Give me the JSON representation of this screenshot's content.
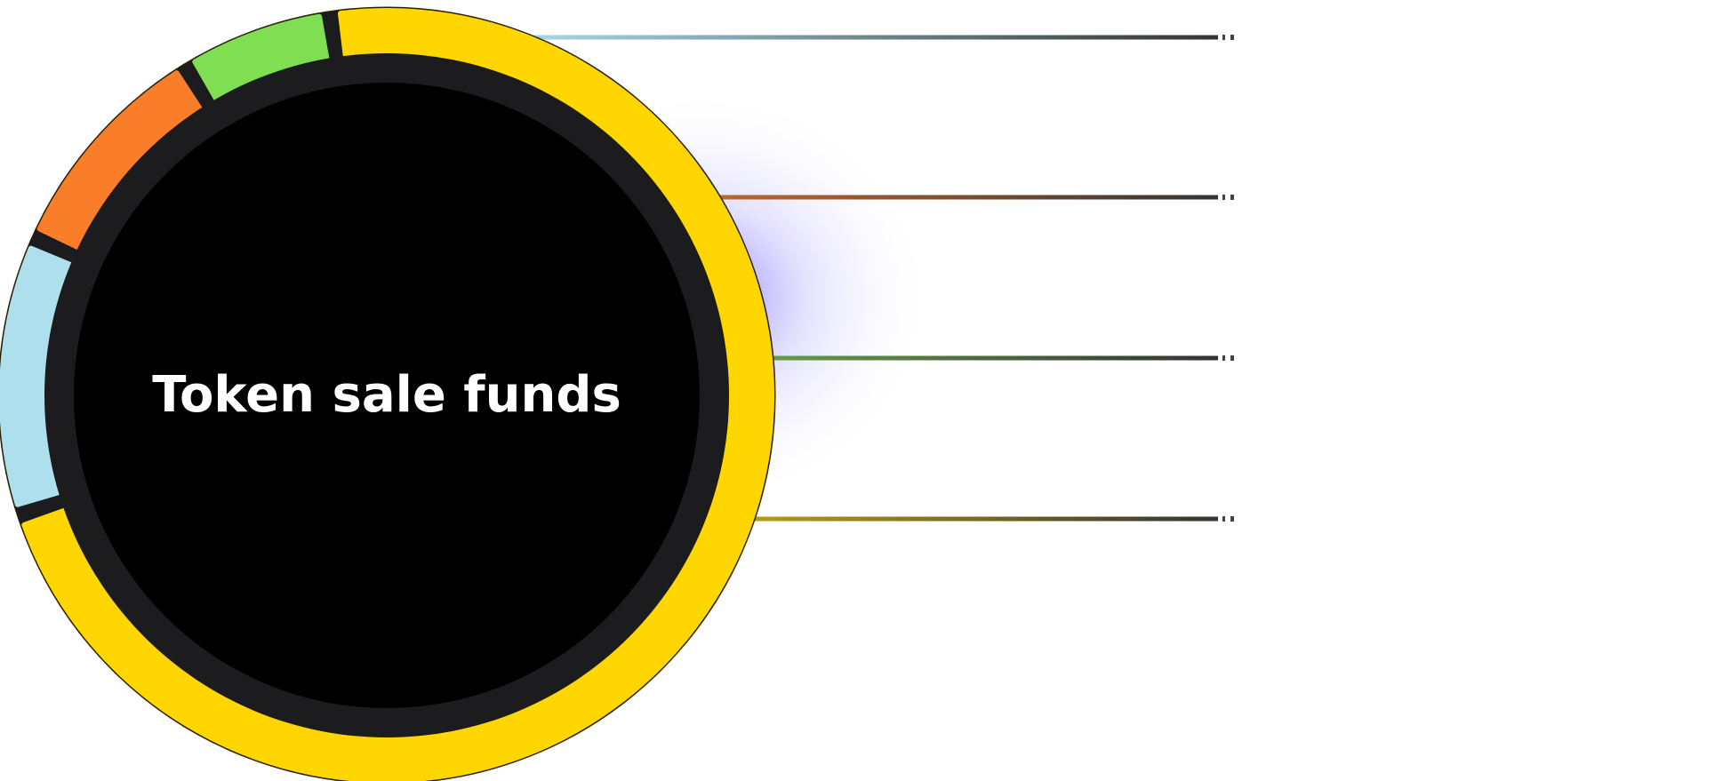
{
  "chart_data": {
    "type": "pie",
    "title": "Token sale funds",
    "slices": [
      {
        "value": 68,
        "color": "#FFD600"
      },
      {
        "value": 11,
        "color": "#ADDFED"
      },
      {
        "value": 9,
        "color": "#FA7E2A"
      },
      {
        "value": 6,
        "color": "#7FDE52"
      }
    ],
    "leader_colors": [
      "#ADDFED",
      "#FA7E2A",
      "#7FDE52",
      "#FFD600"
    ]
  }
}
